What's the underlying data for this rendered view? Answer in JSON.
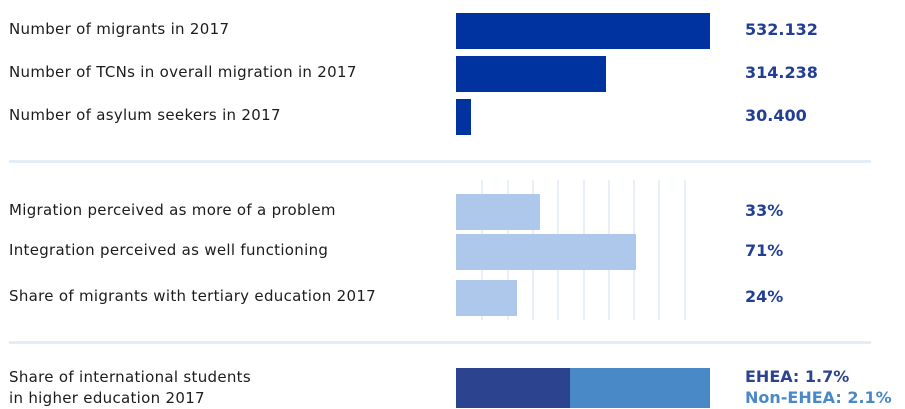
{
  "colors": {
    "dark_bar": "#0033a0",
    "light_bar": "#adc8ea",
    "value_dark": "#233f95",
    "ehea": "#2c4490",
    "non_ehea": "#4a89c8"
  },
  "chart_data": [
    {
      "type": "bar",
      "orientation": "horizontal",
      "categories": [
        "Number of migrants in 2017",
        "Number of TCNs in overall migration in 2017",
        "Number of asylum seekers in 2017"
      ],
      "values": [
        532132,
        314238,
        30400
      ],
      "value_labels": [
        "532.132",
        "314.238",
        "30.400"
      ]
    },
    {
      "type": "bar",
      "orientation": "horizontal",
      "categories": [
        "Migration perceived as more of a problem",
        "Integration perceived as well functioning",
        "Share of migrants with tertiary education 2017"
      ],
      "values": [
        33,
        71,
        24
      ],
      "value_labels": [
        "33%",
        "71%",
        "24%"
      ],
      "xlim": [
        0,
        100
      ],
      "grid": true
    },
    {
      "type": "bar",
      "orientation": "horizontal",
      "stacked": true,
      "categories": [
        "Share of international students in higher education 2017"
      ],
      "label_lines": [
        "Share of international students",
        "in higher education 2017"
      ],
      "series": [
        {
          "name": "EHEA",
          "values": [
            1.7
          ]
        },
        {
          "name": "Non-EHEA",
          "values": [
            2.1
          ]
        }
      ],
      "value_labels": [
        "EHEA: 1.7%",
        "Non-EHEA: 2.1%"
      ]
    }
  ]
}
